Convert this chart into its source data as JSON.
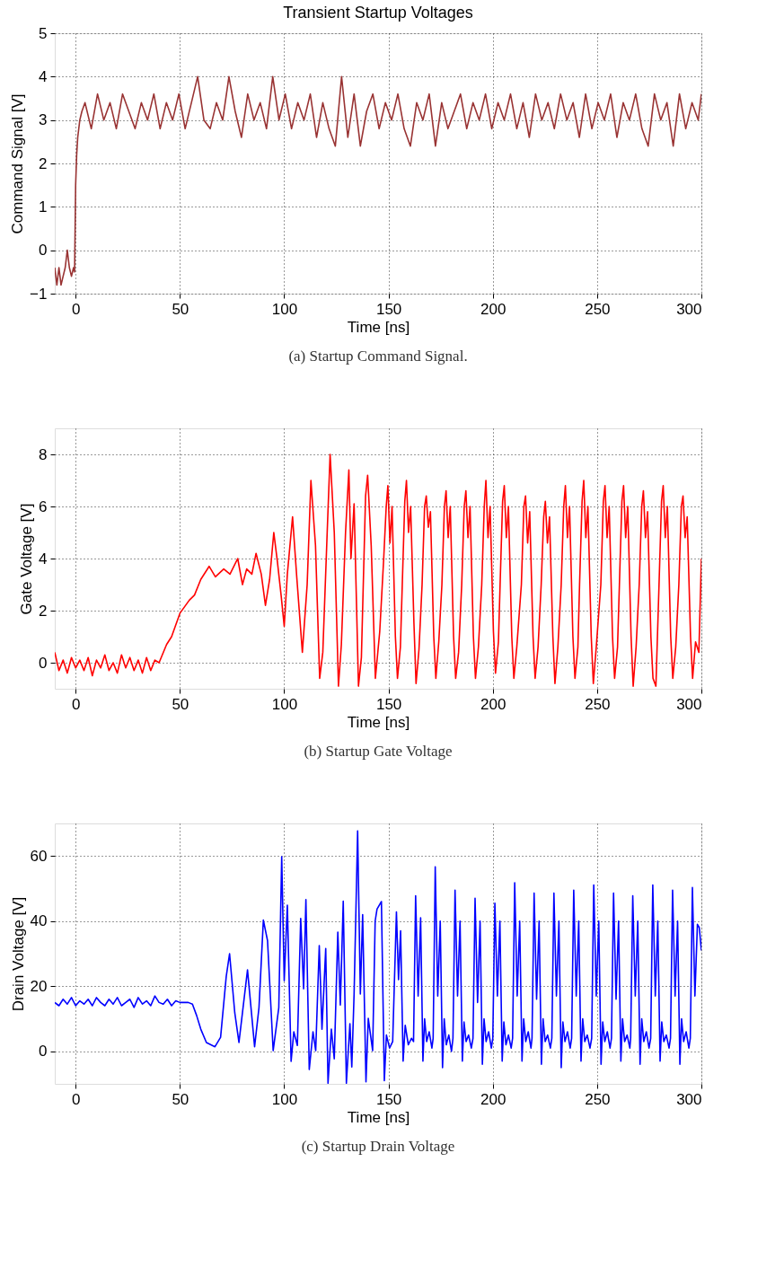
{
  "chart_data": [
    {
      "type": "line",
      "title": "Transient Startup Voltages",
      "xlabel": "Time [ns]",
      "ylabel": "Command Signal [V]",
      "xlim": [
        -10,
        300
      ],
      "xticks": [
        0,
        50,
        100,
        150,
        200,
        250,
        300
      ],
      "ylim": [
        -1,
        5
      ],
      "yticks": [
        -1,
        0,
        1,
        2,
        3,
        4,
        5
      ],
      "grid": true,
      "annotations": [
        "(a) Startup Command Signal."
      ],
      "series": [
        {
          "color": "#993333",
          "x": [
            -10,
            -9,
            -8,
            -7,
            -6,
            -5,
            -4,
            -3,
            -2,
            -1,
            -0.5,
            0,
            0.5,
            1,
            2,
            3,
            4.5,
            7.5,
            10.5,
            13.5,
            16.5,
            19.5,
            22.5,
            25.5,
            28.5,
            31.5,
            34.5,
            37.5,
            40.5,
            43.5,
            46.5,
            49.5,
            52.5,
            55.5,
            58.5,
            61.5,
            64.5,
            67.5,
            70.5,
            73.5,
            76.5,
            79.5,
            82.5,
            85.5,
            88.5,
            91.5,
            94.5,
            97.5,
            100.5,
            103.5,
            106.5,
            109.5,
            112.5,
            115.5,
            118.5,
            121.5,
            124.5,
            127.5,
            130.5,
            133.5,
            136.5,
            139.5,
            142.5,
            145.5,
            148.5,
            151.5,
            154.5,
            157.5,
            160.5,
            163.5,
            166.5,
            169.5,
            172.5,
            175.5,
            178.5,
            181.5,
            184.5,
            187.5,
            190.5,
            193.5,
            196.5,
            199.5,
            202.5,
            205.5,
            208.5,
            211.5,
            214.5,
            217.5,
            220.5,
            223.5,
            226.5,
            229.5,
            232.5,
            235.5,
            238.5,
            241.5,
            244.5,
            247.5,
            250.5,
            253.5,
            256.5,
            259.5,
            262.5,
            265.5,
            268.5,
            271.5,
            274.5,
            277.5,
            280.5,
            283.5,
            286.5,
            289.5,
            292.5,
            295.5,
            298.5,
            300
          ],
          "values": [
            -0.4,
            -0.8,
            -0.4,
            -0.8,
            -0.6,
            -0.4,
            0.0,
            -0.4,
            -0.6,
            -0.4,
            -0.5,
            1.5,
            2.2,
            2.6,
            3.0,
            3.2,
            3.4,
            2.8,
            3.6,
            3.0,
            3.4,
            2.8,
            3.6,
            3.2,
            2.8,
            3.4,
            3.0,
            3.6,
            2.8,
            3.4,
            3.0,
            3.6,
            2.8,
            3.4,
            4.0,
            3.0,
            2.8,
            3.4,
            3.0,
            4.0,
            3.2,
            2.6,
            3.6,
            3.0,
            3.4,
            2.8,
            4.0,
            3.0,
            3.6,
            2.8,
            3.4,
            3.0,
            3.6,
            2.6,
            3.4,
            2.8,
            2.4,
            4.0,
            2.6,
            3.6,
            2.4,
            3.2,
            3.6,
            2.8,
            3.4,
            3.0,
            3.6,
            2.8,
            2.4,
            3.4,
            3.0,
            3.6,
            2.4,
            3.4,
            2.8,
            3.2,
            3.6,
            2.8,
            3.4,
            3.0,
            3.6,
            2.8,
            3.4,
            3.0,
            3.6,
            2.8,
            3.4,
            2.6,
            3.6,
            3.0,
            3.4,
            2.8,
            3.6,
            3.0,
            3.4,
            2.6,
            3.6,
            2.8,
            3.4,
            3.0,
            3.6,
            2.6,
            3.4,
            3.0,
            3.6,
            2.8,
            2.4,
            3.6,
            3.0,
            3.4,
            2.4,
            3.6,
            2.8,
            3.4,
            3.0,
            3.6
          ]
        }
      ]
    },
    {
      "type": "line",
      "xlabel": "Time [ns]",
      "ylabel": "Gate Voltage [V]",
      "xlim": [
        -10,
        300
      ],
      "xticks": [
        0,
        50,
        100,
        150,
        200,
        250,
        300
      ],
      "ylim": [
        -1,
        9
      ],
      "yticks": [
        0,
        2,
        4,
        6,
        8
      ],
      "grid": true,
      "annotations": [
        "(b) Startup Gate Voltage"
      ],
      "series": [
        {
          "color": "#ff0000",
          "x": [
            -10,
            -8,
            -6,
            -4,
            -2,
            0,
            2,
            4,
            6,
            8,
            10,
            12,
            14,
            16,
            18,
            20,
            22,
            24,
            26,
            28,
            30,
            32,
            34,
            36,
            38,
            40,
            43.6,
            46,
            50,
            54.5,
            57,
            60,
            64,
            67,
            71,
            74,
            77.7,
            80,
            82,
            84.5,
            86.5,
            89,
            91,
            93,
            95,
            96.7,
            98.5,
            100,
            101.5,
            104,
            106,
            108.7,
            111,
            112.8,
            115,
            117,
            118.5,
            120.6,
            122,
            124,
            126,
            127.4,
            129.4,
            131,
            132,
            133.5,
            135.6,
            137,
            139,
            140,
            141.7,
            143.7,
            145.8,
            147.7,
            148.9,
            149.7,
            150.7,
            151.7,
            153.3,
            154.3,
            155.7,
            156.6,
            157.8,
            158.6,
            159.6,
            160.6,
            162.2,
            163.2,
            164.6,
            166.1,
            167.3,
            168.1,
            169.1,
            170.1,
            171.7,
            172.7,
            174.1,
            175.6,
            176.8,
            177.6,
            178.6,
            179.6,
            181.2,
            182.2,
            183.6,
            185.1,
            186.3,
            187.1,
            188.1,
            189.1,
            190.7,
            191.7,
            193.1,
            194.7,
            195.9,
            196.7,
            197.7,
            198.7,
            200.3,
            201.3,
            202.7,
            203.5,
            204.7,
            205.5,
            206.5,
            207.5,
            209.1,
            210.1,
            211.5,
            213.7,
            214.9,
            215.7,
            216.7,
            217.7,
            219.3,
            220.3,
            221.7,
            223.2,
            224.4,
            225.2,
            226.2,
            227.2,
            228.8,
            229.8,
            231.2,
            232.8,
            234.0,
            234.8,
            235.8,
            236.8,
            238.4,
            239.4,
            240.8,
            241.6,
            242.8,
            243.6,
            244.6,
            245.6,
            247.2,
            248.2,
            249.6,
            251.8,
            253.0,
            253.8,
            254.8,
            255.8,
            257.4,
            258.4,
            259.8,
            260.7,
            261.9,
            262.7,
            263.7,
            264.7,
            266.3,
            267.3,
            268.7,
            270.2,
            271.4,
            272.2,
            273.2,
            274.2,
            275.8,
            276.8,
            278.2,
            279.7,
            280.9,
            281.7,
            282.7,
            283.7,
            285.3,
            286.3,
            287.7,
            289.2,
            290.4,
            291.2,
            292.2,
            293.2,
            294.8,
            295.8,
            297.2,
            298.8,
            300
          ],
          "values": [
            0.4,
            -0.3,
            0.1,
            -0.4,
            0.2,
            -0.2,
            0.1,
            -0.3,
            0.2,
            -0.5,
            0.1,
            -0.2,
            0.3,
            -0.3,
            0,
            -0.4,
            0.3,
            -0.2,
            0.2,
            -0.3,
            0.1,
            -0.4,
            0.2,
            -0.3,
            0.1,
            0.0,
            0.7,
            1.0,
            1.9,
            2.4,
            2.6,
            3.2,
            3.7,
            3.3,
            3.6,
            3.4,
            4.0,
            3.0,
            3.6,
            3.4,
            4.2,
            3.4,
            2.2,
            3.2,
            5.0,
            3.9,
            2.6,
            1.4,
            3.4,
            5.6,
            3.3,
            0.4,
            3.0,
            7.0,
            4.5,
            -0.6,
            0.4,
            5.0,
            8.0,
            5.0,
            -0.9,
            0.7,
            5.0,
            7.4,
            4.0,
            6.1,
            -0.9,
            0.2,
            6.4,
            7.2,
            4.5,
            -0.6,
            1.2,
            4.0,
            6.0,
            6.8,
            4.6,
            6.0,
            1.0,
            -0.6,
            0.6,
            3.0,
            6.2,
            7.0,
            5.0,
            6.0,
            1.5,
            -0.8,
            0.5,
            3.0,
            6.0,
            6.4,
            5.2,
            5.8,
            1.0,
            -0.6,
            0.8,
            3.0,
            6.0,
            6.6,
            4.8,
            6.0,
            1.0,
            -0.6,
            0.4,
            3.0,
            6.0,
            6.6,
            4.8,
            6.0,
            1.0,
            -0.6,
            0.6,
            3.0,
            6.0,
            7.0,
            4.8,
            6.0,
            1.2,
            -0.4,
            0.8,
            3.0,
            6.2,
            6.8,
            4.8,
            6.0,
            1.0,
            -0.6,
            0.6,
            3.0,
            6.0,
            6.4,
            4.6,
            5.8,
            1.0,
            -0.6,
            0.6,
            3.0,
            5.6,
            6.2,
            4.6,
            5.6,
            1.0,
            -0.8,
            0.6,
            3.0,
            6.0,
            6.8,
            4.8,
            6.0,
            1.0,
            -0.6,
            0.6,
            3.0,
            6.2,
            7.0,
            4.8,
            6.0,
            1.0,
            -0.8,
            0.6,
            3.0,
            6.2,
            6.8,
            4.8,
            6.0,
            1.0,
            -0.6,
            0.6,
            3.0,
            6.2,
            6.8,
            4.8,
            6.0,
            1.0,
            -0.9,
            0.6,
            3.0,
            6.0,
            6.6,
            4.8,
            5.8,
            1.0,
            -0.6,
            -0.9,
            3.0,
            6.2,
            6.8,
            4.8,
            6.0,
            1.0,
            -0.6,
            0.6,
            3.0,
            6.0,
            6.4,
            4.8,
            5.6,
            1.0,
            -0.6,
            0.8,
            0.4,
            4.0
          ]
        }
      ]
    },
    {
      "type": "line",
      "xlabel": "Time [ns]",
      "ylabel": "Drain Voltage [V]",
      "xlim": [
        -10,
        300
      ],
      "xticks": [
        0,
        50,
        100,
        150,
        200,
        250,
        300
      ],
      "ylim": [
        -10,
        70
      ],
      "yticks": [
        0,
        20,
        40,
        60
      ],
      "grid": true,
      "annotations": [
        "(c) Startup Drain Voltage"
      ],
      "series": [
        {
          "color": "#0000ff",
          "x": [
            -10,
            -8,
            -6,
            -4,
            -2,
            0,
            2,
            4,
            6,
            8,
            10,
            12,
            14,
            16,
            18,
            20,
            22,
            24,
            26,
            28,
            30,
            32,
            34,
            36,
            38,
            40,
            42,
            44,
            46,
            48,
            50,
            52,
            54,
            56,
            58,
            60,
            62.7,
            66.8,
            69.5,
            72.2,
            73.8,
            76.3,
            78.3,
            82.4,
            85.8,
            87.9,
            90,
            92,
            94.7,
            97.4,
            98.8,
            100,
            101.5,
            103.3,
            104.6,
            106.3,
            107.9,
            109.3,
            110.4,
            112,
            113.8,
            115.1,
            116.8,
            118.1,
            119.9,
            121,
            122.6,
            124,
            125.7,
            126.9,
            128.3,
            129.8,
            131.5,
            132.4,
            133.5,
            135.2,
            136.5,
            137.6,
            139.2,
            140.3,
            142.4,
            143.6,
            144.5,
            146.6,
            148,
            149,
            150.5,
            152,
            153.8,
            154.8,
            155.8,
            157,
            158,
            159.5,
            161,
            162,
            163,
            164.2,
            165.4,
            166.5,
            167.3,
            168.3,
            169.5,
            170.8,
            171.4,
            172.4,
            173.6,
            174.8,
            175.9,
            176.7,
            177.7,
            178.9,
            180.2,
            180.9,
            181.9,
            183.1,
            184.3,
            185.4,
            186.2,
            187.2,
            188.4,
            189.7,
            190.5,
            191.5,
            192.7,
            193.9,
            195,
            195.8,
            196.8,
            198,
            199.3,
            200,
            201,
            202.2,
            203.4,
            204.5,
            205.3,
            206.3,
            207.5,
            208.8,
            209.5,
            210.5,
            211.7,
            212.9,
            214,
            214.8,
            215.8,
            217,
            218.3,
            218.8,
            219.8,
            221,
            222.2,
            223.3,
            224.1,
            225.1,
            226.3,
            227.6,
            228.3,
            229.3,
            230.5,
            231.7,
            232.8,
            233.6,
            234.6,
            235.8,
            237.1,
            237.8,
            238.8,
            240,
            241.2,
            242.3,
            243.1,
            244.1,
            245.3,
            246.6,
            247.4,
            248.4,
            249.6,
            250.8,
            251.9,
            252.7,
            253.7,
            254.9,
            256.2,
            256.9,
            257.9,
            259.1,
            260.3,
            261.4,
            262.2,
            263.2,
            264.4,
            265.7,
            266.1,
            267.1,
            268.3,
            269.5,
            270.6,
            271.4,
            272.4,
            273.6,
            274.9,
            275.7,
            276.7,
            277.9,
            279.1,
            280.2,
            281,
            282,
            283.2,
            284.5,
            285.2,
            286.2,
            287.4,
            288.6,
            289.7,
            290.5,
            291.5,
            292.7,
            294,
            294.7,
            295.7,
            296.9,
            298.1,
            299,
            300
          ],
          "values": [
            15,
            14,
            16,
            14.5,
            16.5,
            14,
            15.5,
            14.5,
            16,
            14,
            16.5,
            15,
            14,
            16,
            14.5,
            16.5,
            14,
            15,
            16,
            13.5,
            16.5,
            14.5,
            15.5,
            14,
            17,
            15,
            14.5,
            16,
            14,
            15.5,
            15,
            15,
            15,
            14.5,
            11,
            6.8,
            2.7,
            1.4,
            4.3,
            23,
            30,
            11.8,
            2.7,
            25,
            1.4,
            13.4,
            40.3,
            34,
            0.2,
            13.4,
            59.8,
            21.7,
            44.9,
            -3.1,
            6,
            1.8,
            40.8,
            19.2,
            46.6,
            -5.6,
            6,
            0.2,
            32.5,
            6.8,
            31.6,
            -9.8,
            6.8,
            -2.3,
            36.6,
            14.2,
            46.1,
            -9.8,
            8.5,
            -4.8,
            17.6,
            67.7,
            17.6,
            42,
            -9.4,
            10.1,
            0.2,
            40,
            43.7,
            46,
            -9,
            5,
            1,
            3,
            42.8,
            22,
            37,
            -3,
            8,
            2,
            4,
            3,
            47.8,
            17,
            41,
            -3,
            10,
            3,
            6,
            1,
            4,
            56.7,
            17,
            40,
            -5,
            10,
            2,
            5,
            0,
            4,
            49.5,
            17,
            40,
            -3,
            9,
            3,
            5,
            1,
            4,
            47,
            15,
            40,
            -4,
            10,
            3,
            6,
            1,
            4,
            45.5,
            17,
            40,
            -3,
            9,
            2,
            5,
            1,
            4,
            51.8,
            17,
            40,
            -3,
            10,
            3,
            6,
            1,
            4,
            48.6,
            16,
            40,
            -4,
            10,
            3,
            5,
            1,
            4,
            48.6,
            17,
            40,
            -5,
            9,
            3,
            6,
            1,
            4,
            49.5,
            17,
            40,
            -3,
            10,
            3,
            5,
            1,
            4,
            51.1,
            17,
            40,
            -4,
            9,
            3,
            6,
            1,
            4,
            48.6,
            16,
            40,
            -3,
            10,
            3,
            5,
            1,
            4,
            47.8,
            17,
            40,
            -4,
            10,
            3,
            6,
            1,
            4,
            51.1,
            17,
            40,
            -3,
            9,
            3,
            5,
            1,
            4,
            49.5,
            17,
            40,
            -4,
            10,
            3,
            6,
            1,
            4,
            50.3,
            17,
            39,
            38,
            31
          ]
        }
      ]
    }
  ]
}
